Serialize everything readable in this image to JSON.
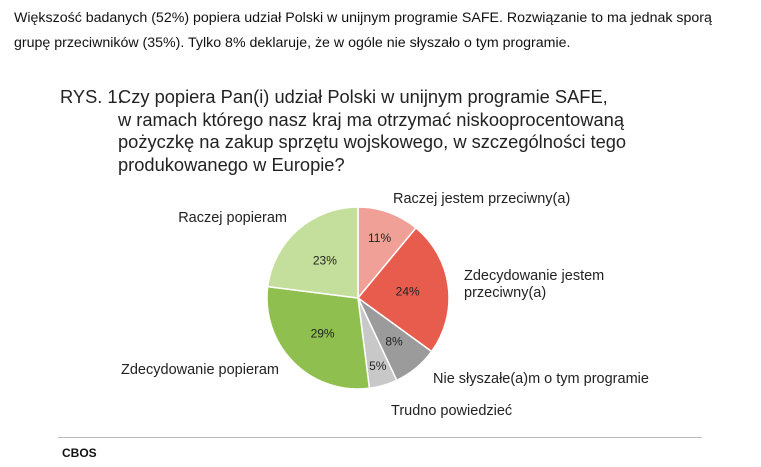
{
  "intro": {
    "line1": "Większość badanych (52%) popiera udział Polski w unijnym programie SAFE. Rozwiązanie to ma jednak sporą",
    "line2": "grupę przeciwników (35%). Tylko 8% deklaruje, że w ogóle nie słyszało o tym programie."
  },
  "figure": {
    "label": "RYS. 1.",
    "title_lines": [
      "Czy popiera Pan(i) udział Polski w unijnym programie SAFE,",
      "w ramach którego nasz kraj ma otrzymać niskooprocentowaną",
      "pożyczkę na zakup sprzętu wojskowego, w szczególności tego",
      "produkowanego w Europie?"
    ]
  },
  "chart_data": {
    "type": "pie",
    "start_angle_deg": 0,
    "direction": "clockwise",
    "slices": [
      {
        "label": "Raczej jestem przeciwny(a)",
        "label_lines": [
          "Raczej jestem przeciwny(a)"
        ],
        "value": 11,
        "value_label": "11%",
        "color": "#f0a097"
      },
      {
        "label": "Zdecydowanie jestem przeciwny(a)",
        "label_lines": [
          "Zdecydowanie jestem",
          "przeciwny(a)"
        ],
        "value": 24,
        "value_label": "24%",
        "color": "#e85c4e"
      },
      {
        "label": "Nie słyszałe(a)m o tym programie",
        "label_lines": [
          "Nie słyszałe(a)m o tym programie"
        ],
        "value": 8,
        "value_label": "8%",
        "color": "#9b9b9b"
      },
      {
        "label": "Trudno powiedzieć",
        "label_lines": [
          "Trudno powiedzieć"
        ],
        "value": 5,
        "value_label": "5%",
        "color": "#c8c8c8"
      },
      {
        "label": "Zdecydowanie popieram",
        "label_lines": [
          "Zdecydowanie popieram"
        ],
        "value": 29,
        "value_label": "29%",
        "color": "#8fbf4f"
      },
      {
        "label": "Raczej popieram",
        "label_lines": [
          "Raczej popieram"
        ],
        "value": 23,
        "value_label": "23%",
        "color": "#c4df9b"
      }
    ]
  },
  "source": "CBOS"
}
